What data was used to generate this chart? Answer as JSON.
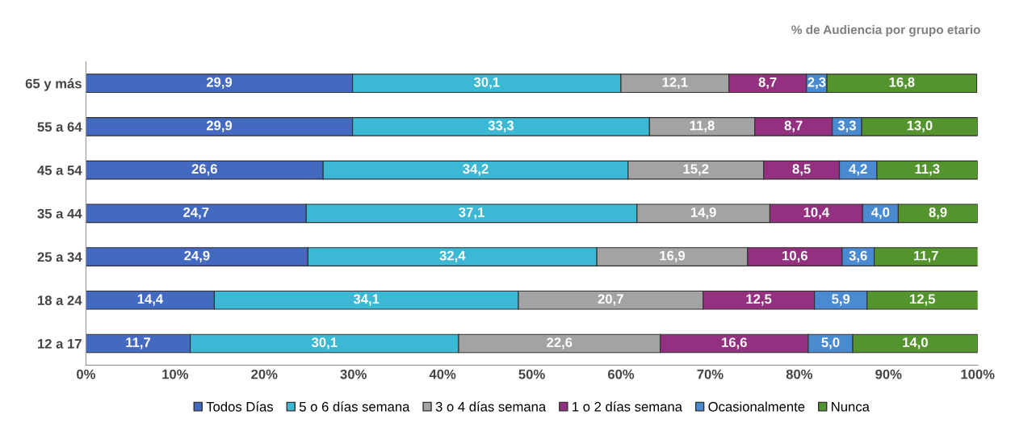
{
  "chart_data": {
    "type": "bar",
    "orientation": "horizontal",
    "stacked": true,
    "categories": [
      "65 y más",
      "55 a 64",
      "45 a 54",
      "35 a 44",
      "25 a 34",
      "18 a 24",
      "12 a 17"
    ],
    "series": [
      {
        "name": "Todos Días",
        "color": "#4469c0",
        "values": [
          29.9,
          29.9,
          26.6,
          24.7,
          24.9,
          14.4,
          11.7
        ],
        "value_labels": [
          "29,9",
          "29,9",
          "26,6",
          "24,7",
          "24,9",
          "14,4",
          "11,7"
        ]
      },
      {
        "name": "5 o 6 días semana",
        "color": "#3ab8d4",
        "values": [
          30.1,
          33.3,
          34.2,
          37.1,
          32.4,
          34.1,
          30.1
        ],
        "value_labels": [
          "30,1",
          "33,3",
          "34,2",
          "37,1",
          "32,4",
          "34,1",
          "30,1"
        ]
      },
      {
        "name": "3 o 4 días semana",
        "color": "#a3a3a3",
        "values": [
          12.1,
          11.8,
          15.2,
          14.9,
          16.9,
          20.7,
          22.6
        ],
        "value_labels": [
          "12,1",
          "11,8",
          "15,2",
          "14,9",
          "16,9",
          "20,7",
          "22,6"
        ]
      },
      {
        "name": "1 o 2 días semana",
        "color": "#93307f",
        "values": [
          8.7,
          8.7,
          8.5,
          10.4,
          10.6,
          12.5,
          16.6
        ],
        "value_labels": [
          "8,7",
          "8,7",
          "8,5",
          "10,4",
          "10,6",
          "12,5",
          "16,6"
        ]
      },
      {
        "name": "Ocasionalmente",
        "color": "#4a8ad0",
        "values": [
          2.3,
          3.3,
          4.2,
          4.0,
          3.6,
          5.9,
          5.0
        ],
        "value_labels": [
          "2,3",
          "3,3",
          "4,2",
          "4,0",
          "3,6",
          "5,9",
          "5,0"
        ]
      },
      {
        "name": "Nunca",
        "color": "#54942f",
        "values": [
          16.8,
          13.0,
          11.3,
          8.9,
          11.7,
          12.5,
          14.0
        ],
        "value_labels": [
          "16,8",
          "13,0",
          "11,3",
          "8,9",
          "11,7",
          "12,5",
          "14,0"
        ]
      }
    ],
    "xlim": [
      0,
      100
    ],
    "xticks": [
      {
        "value": 0,
        "label": "0%"
      },
      {
        "value": 10,
        "label": "10%"
      },
      {
        "value": 20,
        "label": "20%"
      },
      {
        "value": 30,
        "label": "30%"
      },
      {
        "value": 40,
        "label": "40%"
      },
      {
        "value": 50,
        "label": "50%"
      },
      {
        "value": 60,
        "label": "60%"
      },
      {
        "value": 70,
        "label": "70%"
      },
      {
        "value": 80,
        "label": "80%"
      },
      {
        "value": 90,
        "label": "90%"
      },
      {
        "value": 100,
        "label": "100%"
      }
    ],
    "annotations": [
      "% de Audiencia por grupo etario"
    ],
    "legend": "bottom",
    "grid": false
  }
}
